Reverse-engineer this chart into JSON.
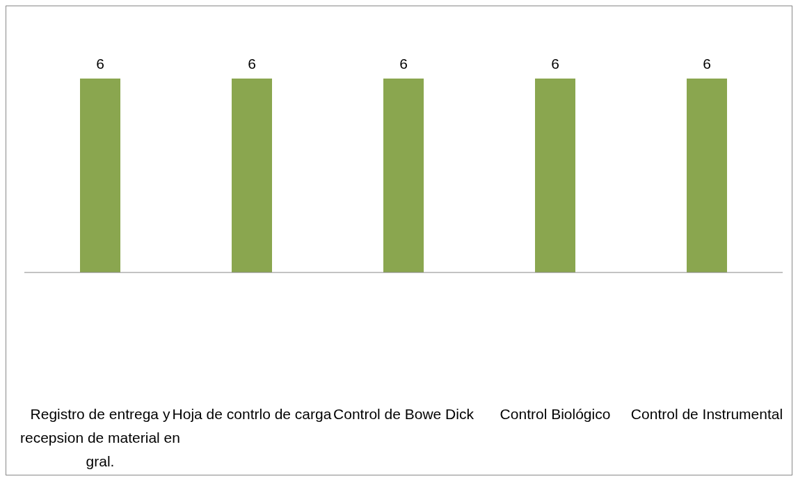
{
  "chart_data": {
    "type": "bar",
    "categories": [
      "Registro de entrega y recepsion de material en gral.",
      "Hoja de contrlo de carga",
      "Control de Bowe Dick",
      "Control Biológico",
      "Control de Instrumental"
    ],
    "values": [
      6,
      6,
      6,
      6,
      6
    ],
    "color": "#8aa64f",
    "data_labels": true,
    "grid": false,
    "legend": false
  }
}
